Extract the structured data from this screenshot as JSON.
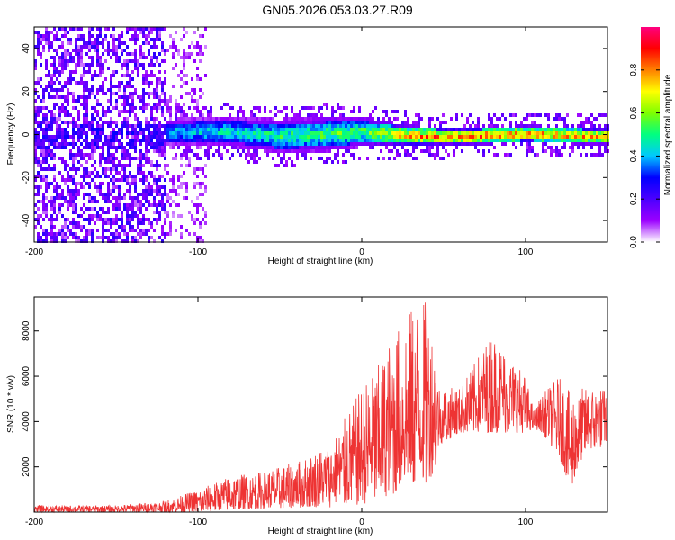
{
  "title": "GN05.2026.053.03.27.R09",
  "chart_data": [
    {
      "type": "heatmap",
      "name": "spectrogram",
      "xlabel": "Height of straight line (km)",
      "ylabel": "Frequency (Hz)",
      "xlim": [
        -200,
        150
      ],
      "ylim": [
        -50,
        50
      ],
      "xticks": [
        -200,
        -100,
        0,
        100
      ],
      "xtick_labels": [
        "-200",
        "-100",
        "0",
        "100"
      ],
      "yticks": [
        -40,
        -20,
        0,
        20,
        40
      ],
      "ytick_labels": [
        "-40",
        "-20",
        "0",
        "20",
        "40"
      ],
      "colorbar": {
        "label": "Normalized spectral amplitude",
        "range": [
          0,
          1
        ],
        "ticks": [
          0,
          0.2,
          0.4,
          0.6,
          0.8
        ],
        "tick_labels": [
          "0.0",
          "0.2",
          "0.4",
          "0.6",
          "0.8"
        ],
        "colors": [
          "#ffffff",
          "#9b00ff",
          "#4b00ff",
          "#0000ff",
          "#00c8ff",
          "#00ff80",
          "#7fff00",
          "#ffff00",
          "#ff8000",
          "#ff0000",
          "#ff0080"
        ]
      },
      "band_profile": [
        {
          "x": -200,
          "center": 0,
          "halfwidth": 50,
          "amp": 0.25
        },
        {
          "x": -120,
          "center": 2,
          "halfwidth": 6,
          "amp": 0.45
        },
        {
          "x": -80,
          "center": 2,
          "halfwidth": 7,
          "amp": 0.5
        },
        {
          "x": -50,
          "center": 0,
          "halfwidth": 8,
          "amp": 0.55
        },
        {
          "x": -20,
          "center": 1,
          "halfwidth": 8,
          "amp": 0.6
        },
        {
          "x": 0,
          "center": 2,
          "halfwidth": 7,
          "amp": 0.6
        },
        {
          "x": 30,
          "center": 0,
          "halfwidth": 5,
          "amp": 0.85
        },
        {
          "x": 60,
          "center": 0,
          "halfwidth": 4,
          "amp": 0.95
        },
        {
          "x": 100,
          "center": 1,
          "halfwidth": 4,
          "amp": 0.9
        },
        {
          "x": 150,
          "center": 0,
          "halfwidth": 4,
          "amp": 0.85
        }
      ]
    },
    {
      "type": "line",
      "name": "snr",
      "xlabel": "Height of straight line (km)",
      "ylabel": "SNR (10 * v/v)",
      "xlim": [
        -200,
        150
      ],
      "ylim": [
        0,
        9500
      ],
      "xticks": [
        -200,
        -100,
        0,
        100
      ],
      "xtick_labels": [
        "-200",
        "-100",
        "0",
        "100"
      ],
      "yticks": [
        2000,
        4000,
        6000,
        8000
      ],
      "ytick_labels": [
        "2000",
        "4000",
        "6000",
        "8000"
      ],
      "color": "#ee3333",
      "envelope": {
        "x": [
          -200,
          -150,
          -120,
          -100,
          -80,
          -60,
          -40,
          -20,
          -10,
          0,
          10,
          20,
          30,
          40,
          45,
          48,
          60,
          80,
          100,
          105,
          110,
          120,
          128,
          135,
          150
        ],
        "low": [
          0,
          0,
          0,
          0,
          100,
          150,
          200,
          200,
          300,
          300,
          500,
          800,
          1000,
          1200,
          2000,
          3000,
          3500,
          3500,
          3500,
          3700,
          3500,
          2500,
          1000,
          2500,
          3000
        ],
        "high": [
          300,
          300,
          500,
          1000,
          1600,
          1800,
          2200,
          3000,
          4200,
          5500,
          6500,
          8000,
          9000,
          9400,
          7000,
          5500,
          5500,
          8000,
          6000,
          4500,
          5200,
          6000,
          5200,
          5500,
          5500
        ]
      }
    }
  ]
}
